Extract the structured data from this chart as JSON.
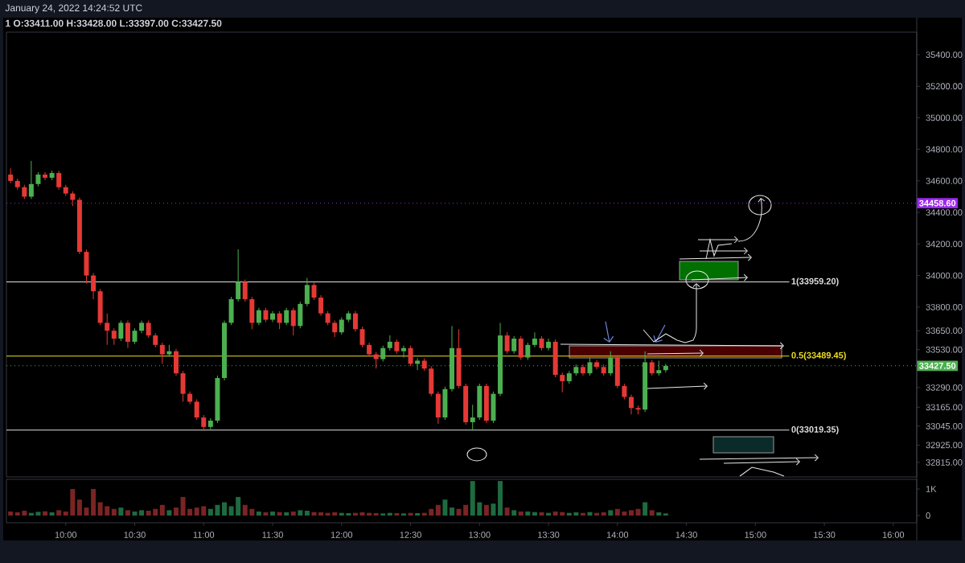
{
  "chart_data": [
    {
      "type": "candlestick",
      "title": "1 O:33411.00 H:33428.00 L:33397.00 C:33427.50",
      "subtitle": "January 24, 2022 14:24:52 UTC",
      "x": [
        9.6,
        9.65,
        9.7,
        9.75,
        9.8,
        9.85,
        9.9,
        9.95,
        10.0,
        10.05,
        10.1,
        10.15,
        10.2,
        10.25,
        10.3,
        10.35,
        10.4,
        10.45,
        10.5,
        10.55,
        10.6,
        10.65,
        10.7,
        10.75,
        10.8,
        10.85,
        10.9,
        10.95,
        11.0,
        11.05,
        11.1,
        11.15,
        11.2,
        11.25,
        11.3,
        11.35,
        11.4,
        11.45,
        11.5,
        11.55,
        11.6,
        11.65,
        11.7,
        11.75,
        11.8,
        11.85,
        11.9,
        11.95,
        12.0,
        12.05,
        12.1,
        12.15,
        12.2,
        12.25,
        12.3,
        12.35,
        12.4,
        12.45,
        12.5,
        12.55,
        12.6,
        12.65,
        12.7,
        12.75,
        12.8,
        12.85,
        12.9,
        12.95,
        13.0,
        13.05,
        13.1,
        13.15,
        13.2,
        13.25,
        13.3,
        13.35,
        13.4,
        13.45,
        13.5,
        13.55,
        13.6,
        13.65,
        13.7,
        13.75,
        13.8,
        13.85,
        13.9,
        13.95,
        14.0,
        14.05,
        14.1,
        14.15,
        14.2,
        14.25,
        14.3,
        14.35
      ],
      "ohlc": [
        [
          34640,
          34680,
          34585,
          34600
        ],
        [
          34600,
          34615,
          34545,
          34560
        ],
        [
          34560,
          34575,
          34485,
          34500
        ],
        [
          34500,
          34727,
          34485,
          34580
        ],
        [
          34580,
          34655,
          34565,
          34640
        ],
        [
          34640,
          34655,
          34605,
          34620
        ],
        [
          34620,
          34665,
          34605,
          34650
        ],
        [
          34650,
          34665,
          34545,
          34560
        ],
        [
          34560,
          34575,
          34505,
          34520
        ],
        [
          34520,
          34535,
          34440,
          34480
        ],
        [
          34480,
          34495,
          34135,
          34150
        ],
        [
          34150,
          34165,
          33950,
          34000
        ],
        [
          34000,
          34015,
          33850,
          33900
        ],
        [
          33900,
          33915,
          33685,
          33700
        ],
        [
          33700,
          33760,
          33560,
          33650
        ],
        [
          33650,
          33665,
          33560,
          33600
        ],
        [
          33600,
          33715,
          33585,
          33700
        ],
        [
          33700,
          33715,
          33540,
          33580
        ],
        [
          33580,
          33665,
          33565,
          33650
        ],
        [
          33650,
          33715,
          33635,
          33700
        ],
        [
          33700,
          33715,
          33605,
          33620
        ],
        [
          33620,
          33635,
          33545,
          33560
        ],
        [
          33560,
          33575,
          33440,
          33500
        ],
        [
          33500,
          33560,
          33485,
          33520
        ],
        [
          33520,
          33535,
          33365,
          33380
        ],
        [
          33380,
          33395,
          33200,
          33250
        ],
        [
          33250,
          33265,
          33185,
          33200
        ],
        [
          33200,
          33215,
          33085,
          33100
        ],
        [
          33100,
          33115,
          33015,
          33040
        ],
        [
          33040,
          33095,
          33025,
          33080
        ],
        [
          33080,
          33365,
          33065,
          33350
        ],
        [
          33350,
          33715,
          33335,
          33700
        ],
        [
          33700,
          33865,
          33685,
          33850
        ],
        [
          33850,
          34166,
          33835,
          33960
        ],
        [
          33960,
          33975,
          33835,
          33850
        ],
        [
          33850,
          33865,
          33660,
          33700
        ],
        [
          33700,
          33795,
          33685,
          33780
        ],
        [
          33780,
          33795,
          33705,
          33720
        ],
        [
          33720,
          33775,
          33705,
          33760
        ],
        [
          33760,
          33775,
          33660,
          33700
        ],
        [
          33700,
          33795,
          33685,
          33780
        ],
        [
          33780,
          33795,
          33620,
          33680
        ],
        [
          33680,
          33835,
          33665,
          33820
        ],
        [
          33820,
          33985,
          33805,
          33940
        ],
        [
          33940,
          33955,
          33845,
          33860
        ],
        [
          33860,
          33875,
          33745,
          33760
        ],
        [
          33760,
          33775,
          33685,
          33700
        ],
        [
          33700,
          33715,
          33610,
          33640
        ],
        [
          33640,
          33735,
          33625,
          33720
        ],
        [
          33720,
          33775,
          33705,
          33760
        ],
        [
          33760,
          33775,
          33645,
          33660
        ],
        [
          33660,
          33675,
          33545,
          33560
        ],
        [
          33560,
          33575,
          33485,
          33500
        ],
        [
          33500,
          33515,
          33410,
          33470
        ],
        [
          33470,
          33555,
          33455,
          33540
        ],
        [
          33540,
          33620,
          33525,
          33580
        ],
        [
          33580,
          33595,
          33505,
          33520
        ],
        [
          33520,
          33555,
          33480,
          33540
        ],
        [
          33540,
          33555,
          33425,
          33440
        ],
        [
          33440,
          33475,
          33400,
          33460
        ],
        [
          33460,
          33475,
          33395,
          33410
        ],
        [
          33410,
          33425,
          33235,
          33250
        ],
        [
          33250,
          33265,
          33060,
          33100
        ],
        [
          33100,
          33295,
          33085,
          33280
        ],
        [
          33280,
          33680,
          33265,
          33540
        ],
        [
          33540,
          33660,
          33285,
          33300
        ],
        [
          33300,
          33315,
          33055,
          33070
        ],
        [
          33070,
          33180,
          33018,
          33100
        ],
        [
          33100,
          33315,
          33085,
          33300
        ],
        [
          33300,
          33315,
          33065,
          33080
        ],
        [
          33080,
          33265,
          33065,
          33250
        ],
        [
          33250,
          33700,
          33235,
          33620
        ],
        [
          33620,
          33640,
          33505,
          33520
        ],
        [
          33520,
          33615,
          33505,
          33600
        ],
        [
          33600,
          33615,
          33465,
          33480
        ],
        [
          33480,
          33575,
          33465,
          33560
        ],
        [
          33560,
          33640,
          33545,
          33600
        ],
        [
          33600,
          33615,
          33525,
          33540
        ],
        [
          33540,
          33600,
          33525,
          33580
        ],
        [
          33580,
          33595,
          33355,
          33370
        ],
        [
          33370,
          33385,
          33260,
          33330
        ],
        [
          33330,
          33395,
          33315,
          33380
        ],
        [
          33380,
          33435,
          33365,
          33420
        ],
        [
          33420,
          33435,
          33365,
          33380
        ],
        [
          33380,
          33480,
          33365,
          33450
        ],
        [
          33450,
          33465,
          33405,
          33420
        ],
        [
          33420,
          33435,
          33365,
          33380
        ],
        [
          33380,
          33520,
          33365,
          33480
        ],
        [
          33480,
          33495,
          33285,
          33300
        ],
        [
          33300,
          33315,
          33215,
          33230
        ],
        [
          33230,
          33245,
          33120,
          33160
        ],
        [
          33160,
          33175,
          33120,
          33150
        ],
        [
          33150,
          33520,
          33135,
          33450
        ],
        [
          33450,
          33465,
          33365,
          33380
        ],
        [
          33380,
          33460,
          33365,
          33400
        ],
        [
          33400,
          33440,
          33385,
          33427.5
        ]
      ],
      "xlim": [
        9.57,
        16.17
      ],
      "ylim": [
        32723,
        35543
      ],
      "yticks": [
        {
          "value": 35400,
          "label": "35400.00"
        },
        {
          "value": 35200,
          "label": "35200.00"
        },
        {
          "value": 35000,
          "label": "35000.00"
        },
        {
          "value": 34800,
          "label": "34800.00"
        },
        {
          "value": 34600,
          "label": "34600.00"
        },
        {
          "value": 34400,
          "label": "34400.00"
        },
        {
          "value": 34200,
          "label": "34200.00"
        },
        {
          "value": 34000,
          "label": "34000.00"
        },
        {
          "value": 33800,
          "label": "33800.00"
        },
        {
          "value": 33650,
          "label": "33650.00"
        },
        {
          "value": 33530,
          "label": "33530.00"
        },
        {
          "value": 33290,
          "label": "33290.00"
        },
        {
          "value": 33165,
          "label": "33165.00"
        },
        {
          "value": 33045,
          "label": "33045.00"
        },
        {
          "value": 32925,
          "label": "32925.00"
        },
        {
          "value": 32815,
          "label": "32815.00"
        }
      ],
      "ref_lines": [
        {
          "axis": "y",
          "value": 34458.6,
          "label": "34458.60",
          "color": "#9c27f0",
          "line_style": "dotted"
        },
        {
          "axis": "y",
          "value": 33959.2,
          "label": "1(33959.20)",
          "color": "#e0e0e0",
          "line_style": "solid"
        },
        {
          "axis": "y",
          "value": 33489.45,
          "label": "0.5(33489.45)",
          "color": "#f0e020",
          "line_style": "solid"
        },
        {
          "axis": "y",
          "value": 33019.35,
          "label": "0(33019.35)",
          "color": "#e0e0e0",
          "line_style": "solid"
        },
        {
          "axis": "y",
          "value": 33427.5,
          "label": "33427.50",
          "color": "#4caf50",
          "line_style": "dotted"
        }
      ],
      "tick_labels": "y"
    },
    {
      "type": "bar",
      "x": [
        9.6,
        9.65,
        9.7,
        9.75,
        9.8,
        9.85,
        9.9,
        9.95,
        10.0,
        10.05,
        10.1,
        10.15,
        10.2,
        10.25,
        10.3,
        10.35,
        10.4,
        10.45,
        10.5,
        10.55,
        10.6,
        10.65,
        10.7,
        10.75,
        10.8,
        10.85,
        10.9,
        10.95,
        11.0,
        11.05,
        11.1,
        11.15,
        11.2,
        11.25,
        11.3,
        11.35,
        11.4,
        11.45,
        11.5,
        11.55,
        11.6,
        11.65,
        11.7,
        11.75,
        11.8,
        11.85,
        11.9,
        11.95,
        12.0,
        12.05,
        12.1,
        12.15,
        12.2,
        12.25,
        12.3,
        12.35,
        12.4,
        12.45,
        12.5,
        12.55,
        12.6,
        12.65,
        12.7,
        12.75,
        12.8,
        12.85,
        12.9,
        12.95,
        13.0,
        13.05,
        13.1,
        13.15,
        13.2,
        13.25,
        13.3,
        13.35,
        13.4,
        13.45,
        13.5,
        13.55,
        13.6,
        13.65,
        13.7,
        13.75,
        13.8,
        13.85,
        13.9,
        13.95,
        14.0,
        14.05,
        14.1,
        14.15,
        14.2,
        14.25,
        14.3,
        14.35
      ],
      "values": [
        150,
        120,
        180,
        100,
        140,
        160,
        120,
        200,
        150,
        1000,
        600,
        300,
        1000,
        500,
        350,
        250,
        300,
        200,
        150,
        200,
        180,
        250,
        400,
        200,
        300,
        700,
        250,
        300,
        350,
        250,
        400,
        500,
        350,
        700,
        400,
        250,
        150,
        120,
        150,
        130,
        120,
        150,
        200,
        180,
        130,
        120,
        100,
        120,
        100,
        90,
        100,
        120,
        100,
        90,
        80,
        100,
        90,
        80,
        100,
        90,
        100,
        250,
        400,
        600,
        300,
        250,
        400,
        1300,
        500,
        400,
        450,
        1300,
        300,
        200,
        150,
        150,
        130,
        120,
        100,
        150,
        130,
        100,
        120,
        100,
        130,
        100,
        120,
        200,
        250,
        150,
        200,
        250,
        500,
        200,
        120,
        80
      ],
      "xlim": [
        9.57,
        16.17
      ],
      "xticks": [
        {
          "value": 10,
          "label": "10:00"
        },
        {
          "value": 10.5,
          "label": "10:30"
        },
        {
          "value": 11,
          "label": "11:00"
        },
        {
          "value": 11.5,
          "label": "11:30"
        },
        {
          "value": 12,
          "label": "12:00"
        },
        {
          "value": 12.5,
          "label": "12:30"
        },
        {
          "value": 13,
          "label": "13:00"
        },
        {
          "value": 13.5,
          "label": "13:30"
        },
        {
          "value": 14,
          "label": "14:00"
        },
        {
          "value": 14.5,
          "label": "14:30"
        },
        {
          "value": 15,
          "label": "15:00"
        },
        {
          "value": 15.5,
          "label": "15:30"
        },
        {
          "value": 16,
          "label": "16:00"
        }
      ],
      "ylim": [
        -273,
        1364
      ],
      "yticks": [
        {
          "value": 0,
          "label": "0"
        },
        {
          "value": 1000,
          "label": "1K"
        }
      ]
    }
  ]
}
